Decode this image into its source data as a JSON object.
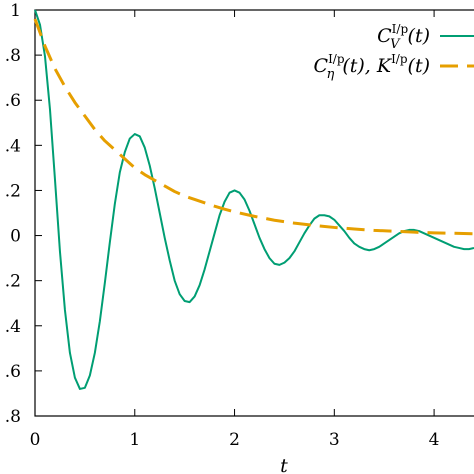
{
  "chart_data": {
    "type": "line",
    "xlabel": "t",
    "ylabel": "",
    "xlim": [
      0,
      4.4
    ],
    "ylim": [
      -0.8,
      1.0
    ],
    "grid": false,
    "legend_position": "top-right",
    "x_ticks": [
      {
        "value": 0,
        "label": "0"
      },
      {
        "value": 1,
        "label": "1"
      },
      {
        "value": 2,
        "label": "2"
      },
      {
        "value": 3,
        "label": "3"
      },
      {
        "value": 4,
        "label": "4"
      }
    ],
    "y_ticks": [
      {
        "value": 1.0,
        "label": "1"
      },
      {
        "value": 0.8,
        "label": ".8"
      },
      {
        "value": 0.6,
        "label": ".6"
      },
      {
        "value": 0.4,
        "label": ".4"
      },
      {
        "value": 0.2,
        "label": ".2"
      },
      {
        "value": 0.0,
        "label": "0"
      },
      {
        "value": -0.2,
        "label": ".2"
      },
      {
        "value": -0.4,
        "label": ".4"
      },
      {
        "value": -0.6,
        "label": ".6"
      },
      {
        "value": -0.8,
        "label": ".8"
      }
    ],
    "series": [
      {
        "name": "C_V^{I/p}(t)",
        "legend_main": "C",
        "legend_sub": "V",
        "legend_sup": "I/p",
        "legend_tail": "(t)",
        "color": "#009e73",
        "style": "solid",
        "x": [
          0.0,
          0.05,
          0.1,
          0.15,
          0.2,
          0.25,
          0.3,
          0.35,
          0.4,
          0.45,
          0.5,
          0.55,
          0.6,
          0.65,
          0.7,
          0.75,
          0.8,
          0.85,
          0.9,
          0.95,
          1.0,
          1.05,
          1.1,
          1.15,
          1.2,
          1.25,
          1.3,
          1.35,
          1.4,
          1.45,
          1.5,
          1.55,
          1.6,
          1.65,
          1.7,
          1.75,
          1.8,
          1.85,
          1.9,
          1.95,
          2.0,
          2.05,
          2.1,
          2.15,
          2.2,
          2.25,
          2.3,
          2.35,
          2.4,
          2.45,
          2.5,
          2.55,
          2.6,
          2.65,
          2.7,
          2.75,
          2.8,
          2.85,
          2.9,
          2.95,
          3.0,
          3.05,
          3.1,
          3.15,
          3.2,
          3.25,
          3.3,
          3.35,
          3.4,
          3.45,
          3.5,
          3.55,
          3.6,
          3.65,
          3.7,
          3.75,
          3.8,
          3.85,
          3.9,
          3.95,
          4.0,
          4.05,
          4.1,
          4.15,
          4.2,
          4.25,
          4.3,
          4.35,
          4.4
        ],
        "y": [
          1.0,
          0.935,
          0.795,
          0.56,
          0.25,
          -0.07,
          -0.33,
          -0.52,
          -0.63,
          -0.68,
          -0.675,
          -0.62,
          -0.52,
          -0.38,
          -0.21,
          -0.03,
          0.14,
          0.28,
          0.37,
          0.43,
          0.45,
          0.44,
          0.39,
          0.31,
          0.21,
          0.1,
          -0.01,
          -0.11,
          -0.2,
          -0.26,
          -0.29,
          -0.295,
          -0.27,
          -0.22,
          -0.15,
          -0.07,
          0.01,
          0.09,
          0.15,
          0.19,
          0.2,
          0.19,
          0.16,
          0.11,
          0.05,
          -0.01,
          -0.06,
          -0.1,
          -0.125,
          -0.13,
          -0.12,
          -0.1,
          -0.07,
          -0.03,
          0.01,
          0.045,
          0.075,
          0.09,
          0.09,
          0.085,
          0.07,
          0.045,
          0.02,
          -0.01,
          -0.035,
          -0.05,
          -0.06,
          -0.065,
          -0.06,
          -0.05,
          -0.035,
          -0.02,
          -0.005,
          0.01,
          0.02,
          0.025,
          0.025,
          0.02,
          0.01,
          0.0,
          -0.01,
          -0.02,
          -0.03,
          -0.04,
          -0.05,
          -0.055,
          -0.06,
          -0.06,
          -0.055
        ]
      },
      {
        "name": "C_η^{I/p}(t), K^{I/p}(t)",
        "legend_main": "C",
        "legend_sub": "η",
        "legend_sup": "I/p",
        "legend_tail": "(t), K",
        "legend_sup2": "I/p",
        "legend_tail2": "(t)",
        "color": "#e69f00",
        "style": "dashed",
        "x": [
          0.0,
          0.1,
          0.2,
          0.3,
          0.4,
          0.5,
          0.6,
          0.7,
          0.8,
          0.9,
          1.0,
          1.1,
          1.2,
          1.3,
          1.4,
          1.5,
          1.6,
          1.7,
          1.8,
          1.9,
          2.0,
          2.2,
          2.4,
          2.6,
          2.8,
          3.0,
          3.2,
          3.4,
          3.6,
          3.8,
          4.0,
          4.2,
          4.4
        ],
        "y": [
          0.96,
          0.84,
          0.74,
          0.66,
          0.59,
          0.53,
          0.47,
          0.42,
          0.38,
          0.34,
          0.3,
          0.27,
          0.245,
          0.22,
          0.195,
          0.175,
          0.16,
          0.145,
          0.13,
          0.117,
          0.105,
          0.085,
          0.068,
          0.055,
          0.045,
          0.036,
          0.029,
          0.023,
          0.019,
          0.015,
          0.012,
          0.01,
          0.008
        ]
      }
    ]
  }
}
